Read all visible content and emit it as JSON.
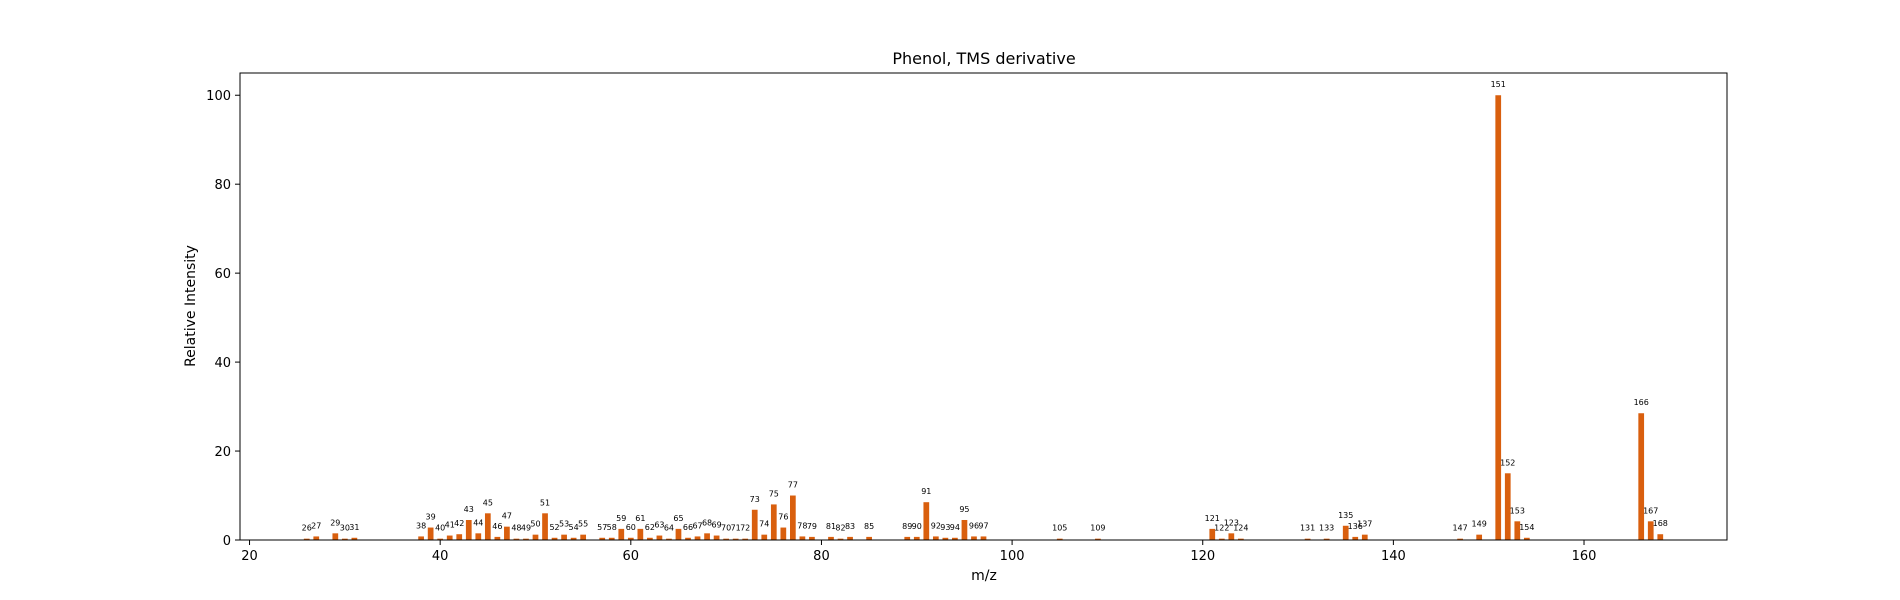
{
  "chart_data": {
    "type": "bar",
    "title": "Phenol, TMS derivative",
    "xlabel": "m/z",
    "ylabel": "Relative Intensity",
    "xlim": [
      19,
      175
    ],
    "ylim": [
      0,
      105
    ],
    "xticks": [
      20,
      40,
      60,
      80,
      100,
      120,
      140,
      160
    ],
    "yticks": [
      0,
      20,
      40,
      60,
      80,
      100
    ],
    "grid": false,
    "bar_color": "#d95f0e",
    "peaks": [
      {
        "mz": 26,
        "intensity": 0.3
      },
      {
        "mz": 27,
        "intensity": 0.8
      },
      {
        "mz": 29,
        "intensity": 1.5
      },
      {
        "mz": 30,
        "intensity": 0.3
      },
      {
        "mz": 31,
        "intensity": 0.5
      },
      {
        "mz": 38,
        "intensity": 0.8
      },
      {
        "mz": 39,
        "intensity": 2.8
      },
      {
        "mz": 40,
        "intensity": 0.3
      },
      {
        "mz": 41,
        "intensity": 1.0
      },
      {
        "mz": 42,
        "intensity": 1.3
      },
      {
        "mz": 43,
        "intensity": 4.5
      },
      {
        "mz": 44,
        "intensity": 1.5
      },
      {
        "mz": 45,
        "intensity": 6.0
      },
      {
        "mz": 46,
        "intensity": 0.7
      },
      {
        "mz": 47,
        "intensity": 3.0
      },
      {
        "mz": 48,
        "intensity": 0.3
      },
      {
        "mz": 49,
        "intensity": 0.3
      },
      {
        "mz": 50,
        "intensity": 1.2
      },
      {
        "mz": 51,
        "intensity": 6.0
      },
      {
        "mz": 52,
        "intensity": 0.5
      },
      {
        "mz": 53,
        "intensity": 1.2
      },
      {
        "mz": 54,
        "intensity": 0.5
      },
      {
        "mz": 55,
        "intensity": 1.2
      },
      {
        "mz": 57,
        "intensity": 0.5
      },
      {
        "mz": 58,
        "intensity": 0.5
      },
      {
        "mz": 59,
        "intensity": 2.5
      },
      {
        "mz": 60,
        "intensity": 0.5
      },
      {
        "mz": 61,
        "intensity": 2.5
      },
      {
        "mz": 62,
        "intensity": 0.5
      },
      {
        "mz": 63,
        "intensity": 1.0
      },
      {
        "mz": 64,
        "intensity": 0.3
      },
      {
        "mz": 65,
        "intensity": 2.5
      },
      {
        "mz": 66,
        "intensity": 0.5
      },
      {
        "mz": 67,
        "intensity": 0.8
      },
      {
        "mz": 68,
        "intensity": 1.5
      },
      {
        "mz": 69,
        "intensity": 1.0
      },
      {
        "mz": 70,
        "intensity": 0.3
      },
      {
        "mz": 71,
        "intensity": 0.3
      },
      {
        "mz": 72,
        "intensity": 0.3
      },
      {
        "mz": 73,
        "intensity": 6.8
      },
      {
        "mz": 74,
        "intensity": 1.2
      },
      {
        "mz": 75,
        "intensity": 8.0
      },
      {
        "mz": 76,
        "intensity": 2.8
      },
      {
        "mz": 77,
        "intensity": 10.0
      },
      {
        "mz": 78,
        "intensity": 0.8
      },
      {
        "mz": 79,
        "intensity": 0.7
      },
      {
        "mz": 81,
        "intensity": 0.7
      },
      {
        "mz": 82,
        "intensity": 0.3
      },
      {
        "mz": 83,
        "intensity": 0.7
      },
      {
        "mz": 85,
        "intensity": 0.7
      },
      {
        "mz": 89,
        "intensity": 0.7
      },
      {
        "mz": 90,
        "intensity": 0.7
      },
      {
        "mz": 91,
        "intensity": 8.5
      },
      {
        "mz": 92,
        "intensity": 0.8
      },
      {
        "mz": 93,
        "intensity": 0.5
      },
      {
        "mz": 94,
        "intensity": 0.5
      },
      {
        "mz": 95,
        "intensity": 4.5
      },
      {
        "mz": 96,
        "intensity": 0.8
      },
      {
        "mz": 97,
        "intensity": 0.8
      },
      {
        "mz": 105,
        "intensity": 0.3
      },
      {
        "mz": 109,
        "intensity": 0.3
      },
      {
        "mz": 121,
        "intensity": 2.5
      },
      {
        "mz": 122,
        "intensity": 0.3
      },
      {
        "mz": 123,
        "intensity": 1.5
      },
      {
        "mz": 124,
        "intensity": 0.3
      },
      {
        "mz": 131,
        "intensity": 0.3
      },
      {
        "mz": 133,
        "intensity": 0.3
      },
      {
        "mz": 135,
        "intensity": 3.2
      },
      {
        "mz": 136,
        "intensity": 0.7
      },
      {
        "mz": 137,
        "intensity": 1.2
      },
      {
        "mz": 147,
        "intensity": 0.3
      },
      {
        "mz": 149,
        "intensity": 1.2
      },
      {
        "mz": 151,
        "intensity": 100
      },
      {
        "mz": 152,
        "intensity": 15.0
      },
      {
        "mz": 153,
        "intensity": 4.2
      },
      {
        "mz": 154,
        "intensity": 0.5
      },
      {
        "mz": 166,
        "intensity": 28.5
      },
      {
        "mz": 167,
        "intensity": 4.2
      },
      {
        "mz": 168,
        "intensity": 1.3
      }
    ]
  }
}
